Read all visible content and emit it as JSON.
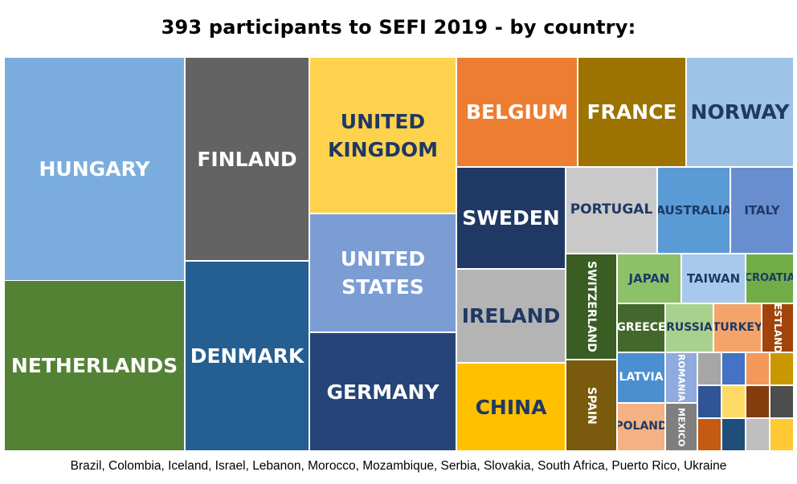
{
  "chart_data": {
    "type": "treemap",
    "title": "393 participants to SEFI 2019 - by country:",
    "footnote": "Brazil, Colombia, Iceland, Israel, Lebanon, Morocco, Mozambique, Serbia, Slovakia, South Africa, Puerto Rico, Ukraine",
    "cells": [
      {
        "label": "HUNGARY",
        "color": "#7aadde",
        "text_color": "#ffffff"
      },
      {
        "label": "NETHERLANDS",
        "color": "#548235",
        "text_color": "#ffffff"
      },
      {
        "label": "FINLAND",
        "color": "#636363",
        "text_color": "#ffffff"
      },
      {
        "label": "DENMARK",
        "color": "#255e91",
        "text_color": "#ffffff"
      },
      {
        "label": "UNITED\nKINGDOM",
        "color": "#ffd24d",
        "text_color": "#1f3864"
      },
      {
        "label": "UNITED\nSTATES",
        "color": "#7b9dd4",
        "text_color": "#ffffff"
      },
      {
        "label": "GERMANY",
        "color": "#264478",
        "text_color": "#ffffff"
      },
      {
        "label": "BELGIUM",
        "color": "#ed7d31",
        "text_color": "#ffffff"
      },
      {
        "label": "FRANCE",
        "color": "#9c7200",
        "text_color": "#ffffff"
      },
      {
        "label": "NORWAY",
        "color": "#9dc3e6",
        "text_color": "#1f3864"
      },
      {
        "label": "SWEDEN",
        "color": "#203864",
        "text_color": "#ffffff"
      },
      {
        "label": "PORTUGAL",
        "color": "#c9c9c9",
        "text_color": "#1f3864"
      },
      {
        "label": "AUSTRALIA",
        "color": "#5b9bd5",
        "text_color": "#1f3864"
      },
      {
        "label": "ITALY",
        "color": "#698ed0",
        "text_color": "#1f3864"
      },
      {
        "label": "IRELAND",
        "color": "#b4b4b4",
        "text_color": "#1f3864"
      },
      {
        "label": "CHINA",
        "color": "#ffc000",
        "text_color": "#1f3864"
      },
      {
        "label": "SWITZERLAND",
        "color": "#3a5d23",
        "text_color": "#ffffff",
        "vertical": true
      },
      {
        "label": "SPAIN",
        "color": "#7a5a0c",
        "text_color": "#ffffff",
        "vertical": true
      },
      {
        "label": "JAPAN",
        "color": "#8cc168",
        "text_color": "#1f3864"
      },
      {
        "label": "TAIWAN",
        "color": "#a9c9ec",
        "text_color": "#1f3864"
      },
      {
        "label": "CROATIA",
        "color": "#70ad47",
        "text_color": "#1f3864"
      },
      {
        "label": "GREECE",
        "color": "#43682b",
        "text_color": "#ffffff"
      },
      {
        "label": "RUSSIA",
        "color": "#a9d18e",
        "text_color": "#1f3864"
      },
      {
        "label": "TURKEY",
        "color": "#f4a46a",
        "text_color": "#1f3864"
      },
      {
        "label": "ESTLAND",
        "color": "#a0440c",
        "text_color": "#ffffff",
        "vertical": true
      },
      {
        "label": "LATVIA",
        "color": "#4a8fd0",
        "text_color": "#ffffff"
      },
      {
        "label": "ROMANIA",
        "color": "#8faadc",
        "text_color": "#ffffff",
        "vertical": true
      },
      {
        "label": "POLAND",
        "color": "#f4b183",
        "text_color": "#1f3864"
      },
      {
        "label": "MEXICO",
        "color": "#7f7f7f",
        "text_color": "#ffffff",
        "vertical": true
      },
      {
        "label": "",
        "color": "#a6a6a6",
        "text_color": "#ffffff"
      },
      {
        "label": "",
        "color": "#4472c4",
        "text_color": "#ffffff"
      },
      {
        "label": "",
        "color": "#f4975a",
        "text_color": "#ffffff"
      },
      {
        "label": "",
        "color": "#c99800",
        "text_color": "#ffffff"
      },
      {
        "label": "",
        "color": "#2f5597",
        "text_color": "#ffffff"
      },
      {
        "label": "",
        "color": "#ffd966",
        "text_color": "#ffffff"
      },
      {
        "label": "",
        "color": "#843c0c",
        "text_color": "#ffffff"
      },
      {
        "label": "",
        "color": "#4d4d4d",
        "text_color": "#ffffff"
      },
      {
        "label": "",
        "color": "#c55a11",
        "text_color": "#ffffff"
      },
      {
        "label": "",
        "color": "#1f4e79",
        "text_color": "#ffffff"
      },
      {
        "label": "",
        "color": "#bfbfbf",
        "text_color": "#ffffff"
      },
      {
        "label": "",
        "color": "#ffc933",
        "text_color": "#ffffff"
      }
    ]
  }
}
